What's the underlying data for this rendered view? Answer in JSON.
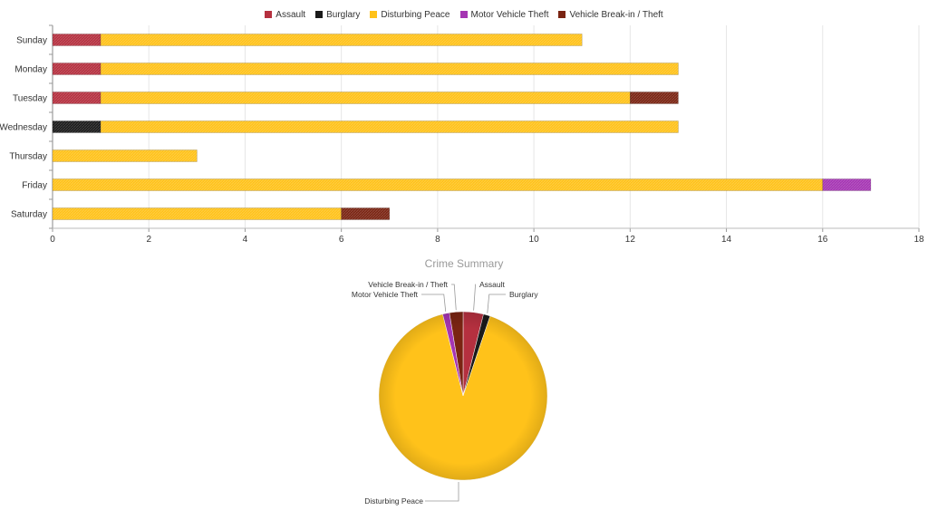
{
  "chart_data": [
    {
      "type": "bar",
      "orientation": "horizontal",
      "stacked": true,
      "categories": [
        "Sunday",
        "Monday",
        "Tuesday",
        "Wednesday",
        "Thursday",
        "Friday",
        "Saturday"
      ],
      "series": [
        {
          "name": "Assault",
          "color": "#b5303f",
          "values": [
            1,
            1,
            1,
            0,
            0,
            0,
            0
          ]
        },
        {
          "name": "Burglary",
          "color": "#1a1a1a",
          "values": [
            0,
            0,
            0,
            1,
            0,
            0,
            0
          ]
        },
        {
          "name": "Disturbing Peace",
          "color": "#ffc21a",
          "values": [
            10,
            12,
            11,
            12,
            3,
            16,
            6
          ]
        },
        {
          "name": "Motor Vehicle Theft",
          "color": "#a535b3",
          "values": [
            0,
            0,
            0,
            0,
            0,
            1,
            0
          ]
        },
        {
          "name": "Vehicle Break-in / Theft",
          "color": "#7a2412",
          "values": [
            0,
            0,
            1,
            0,
            0,
            0,
            1
          ]
        }
      ],
      "xlim": [
        0,
        18
      ],
      "xticks": [
        "0",
        "2",
        "4",
        "6",
        "8",
        "10",
        "12",
        "14",
        "16",
        "18"
      ],
      "grid": true,
      "legend": "top-center"
    },
    {
      "type": "pie",
      "title": "Crime Summary",
      "slices": [
        {
          "name": "Assault",
          "value": 3,
          "color": "#b5303f"
        },
        {
          "name": "Burglary",
          "value": 1,
          "color": "#1a1a1a"
        },
        {
          "name": "Disturbing Peace",
          "value": 70,
          "color": "#ffc21a"
        },
        {
          "name": "Motor Vehicle Theft",
          "value": 1,
          "color": "#a535b3"
        },
        {
          "name": "Vehicle Break-in / Theft",
          "value": 2,
          "color": "#7a2412"
        }
      ]
    }
  ]
}
